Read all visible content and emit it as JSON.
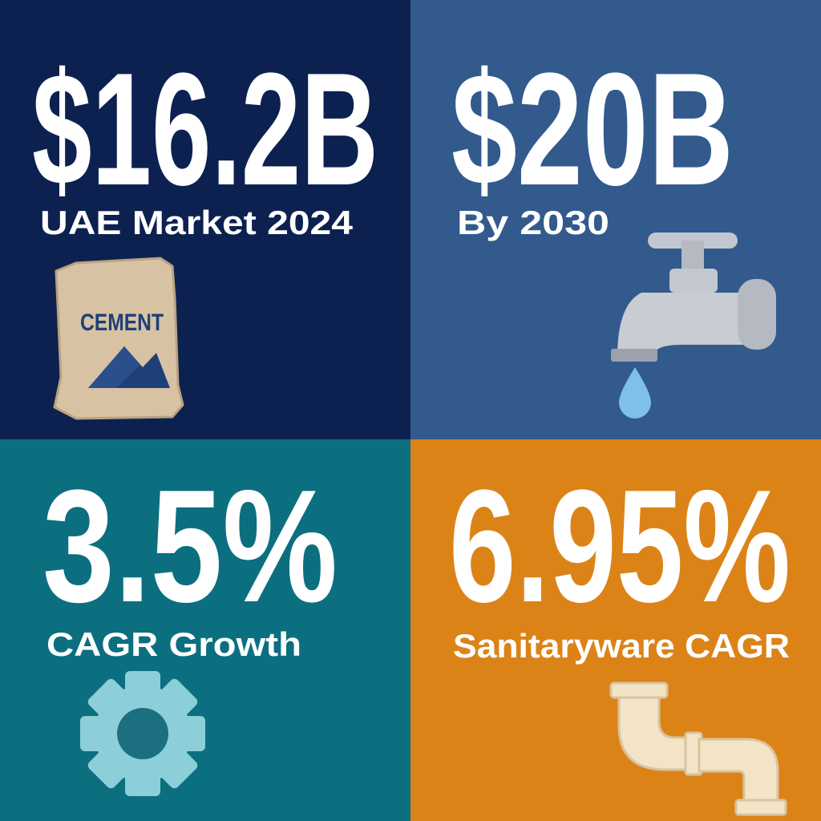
{
  "tiles": [
    {
      "value": "$16.2B",
      "label": "UAE Market 2024",
      "icon_text": "CEMENT"
    },
    {
      "value": "$20B",
      "label": "By 2030"
    },
    {
      "value": "3.5%",
      "label": "CAGR Growth"
    },
    {
      "value": "6.95%",
      "label": "Sanitaryware CAGR"
    }
  ]
}
